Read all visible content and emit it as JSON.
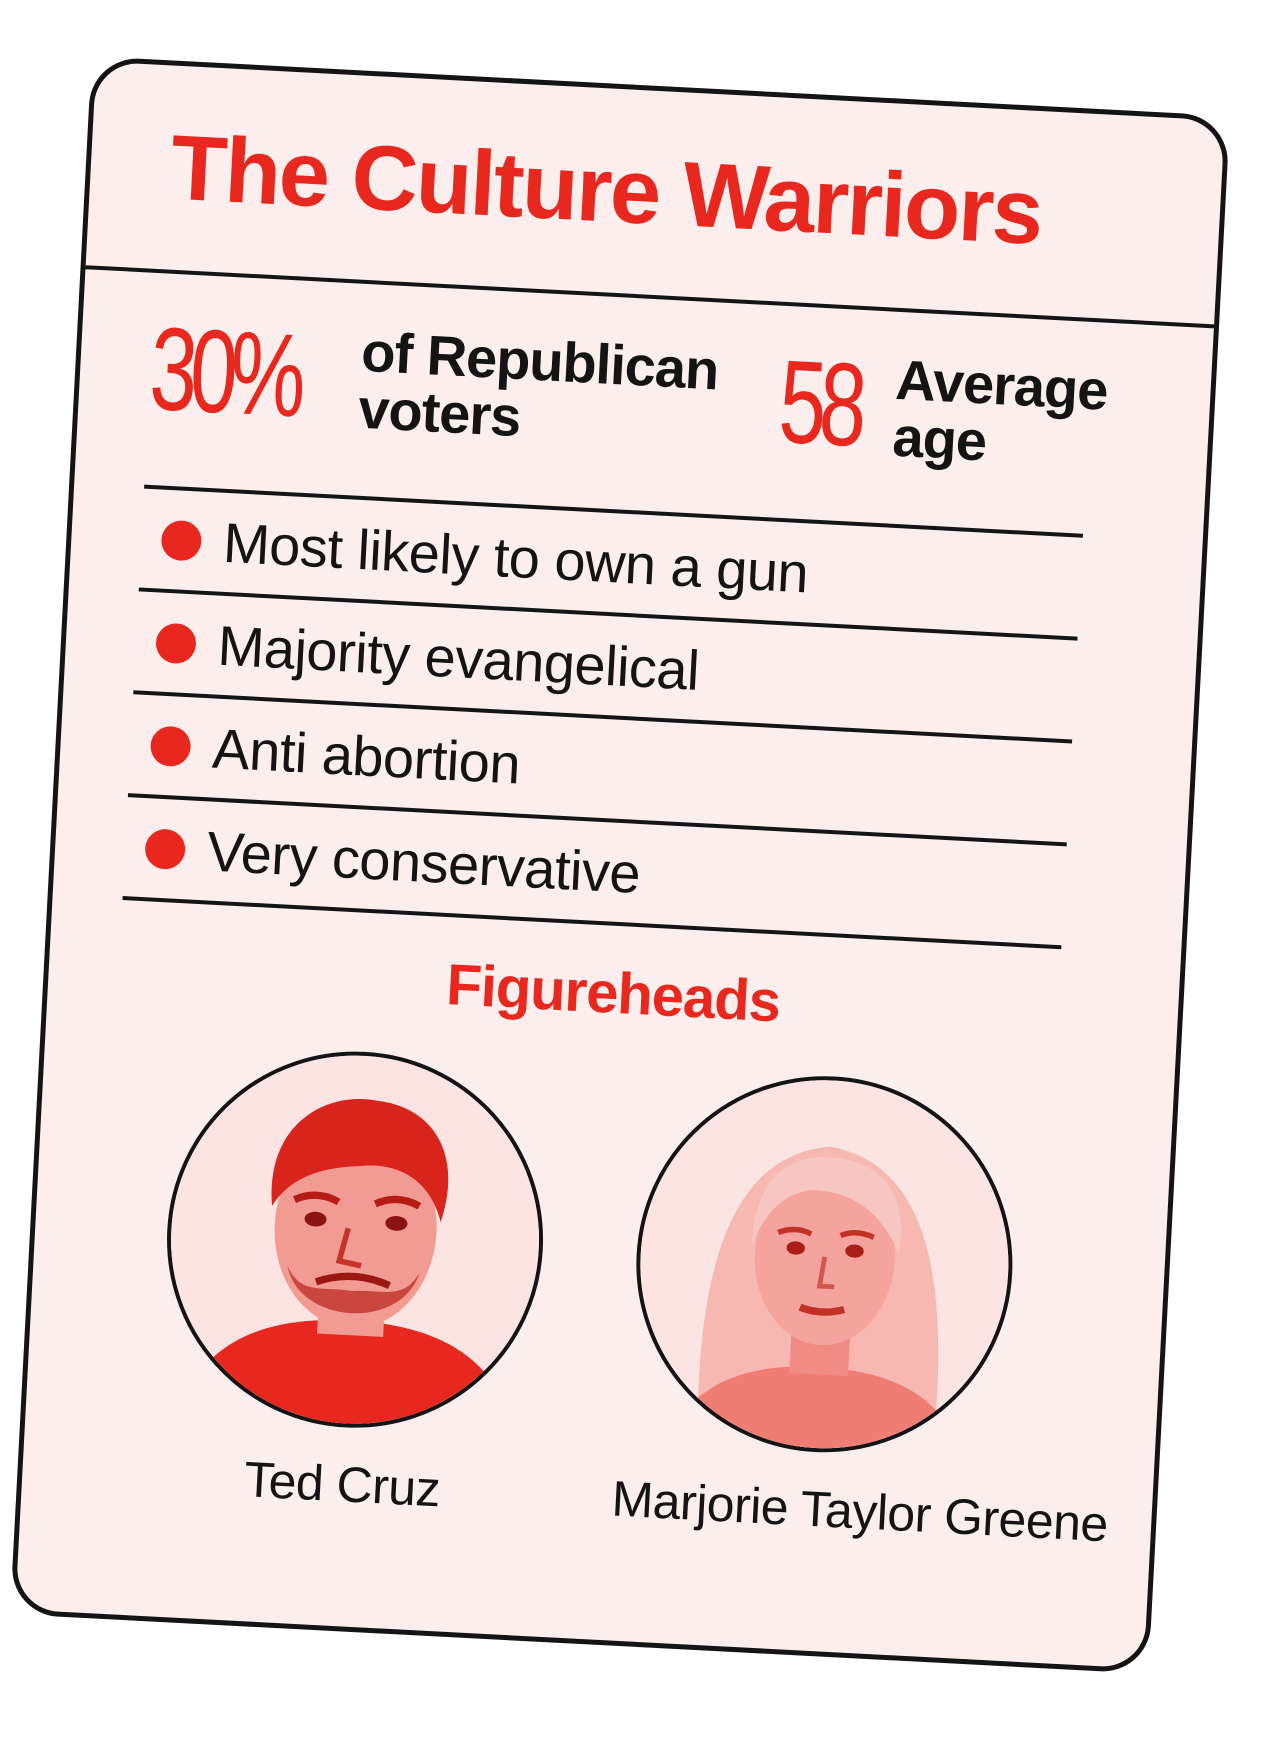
{
  "card": {
    "title": "The Culture Warriors",
    "accent_color": "#e8281e",
    "stats": {
      "voters": {
        "value": "30%",
        "label_line1": "of Republican",
        "label_line2": "voters"
      },
      "age": {
        "value": "58",
        "label_line1": "Average",
        "label_line2": "age"
      }
    },
    "traits": [
      "Most likely to own a gun",
      "Majority evangelical",
      "Anti abortion",
      "Very conservative"
    ],
    "figureheads": {
      "heading": "Figureheads",
      "people": [
        {
          "name": "Ted Cruz"
        },
        {
          "name": "Marjorie Taylor Greene"
        }
      ]
    }
  }
}
